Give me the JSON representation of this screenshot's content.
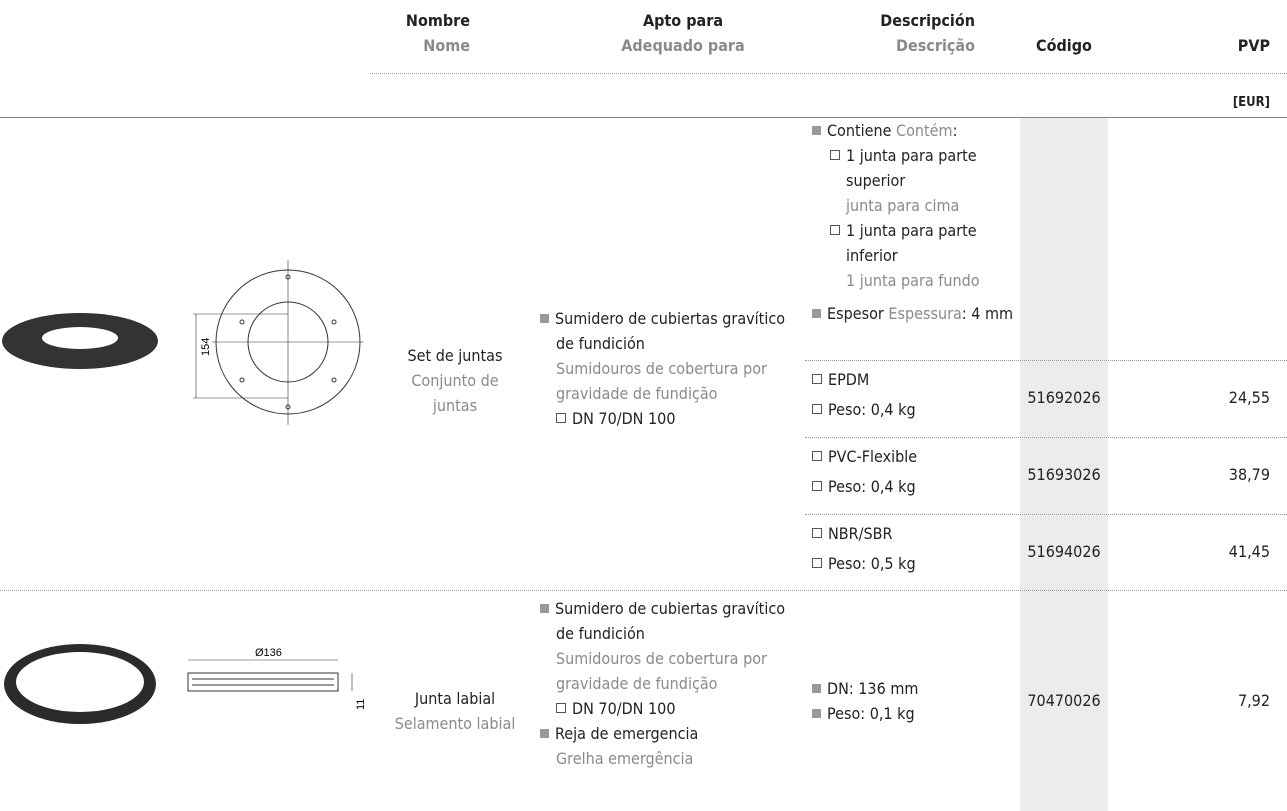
{
  "header": {
    "name_es": "Nombre",
    "name_pt": "Nome",
    "suitable_es": "Apto para",
    "suitable_pt": "Adequado para",
    "desc_es": "Descripción",
    "desc_pt": "Descrição",
    "code": "Código",
    "price": "PVP",
    "currency": "[EUR]"
  },
  "products": [
    {
      "drawing_labels": [
        "154"
      ],
      "name_es": "Set de juntas",
      "name_pt": "Conjunto de juntas",
      "suitable": [
        {
          "es": "Sumidero de cubiertas gravítico de fundición",
          "pt": "Sumidouros de cobertura por gravidade de fundição",
          "sub": "DN 70/DN 100"
        }
      ],
      "contents": {
        "es": "Contiene",
        "pt": "Contém",
        "suffix": ":"
      },
      "items": [
        {
          "es": "1 junta para parte superior",
          "pt": "junta para cima"
        },
        {
          "es": "1 junta para parte inferior",
          "pt": "1 junta para fundo"
        }
      ],
      "thickness": {
        "es": "Espesor",
        "pt": "Espessura",
        "value": ": 4 mm"
      },
      "variants": [
        {
          "material": "EPDM",
          "weight": "Peso: 0,4 kg",
          "code": "51692026",
          "price": "24,55"
        },
        {
          "material": "PVC-Flexible",
          "weight": "Peso: 0,4 kg",
          "code": "51693026",
          "price": "38,79"
        },
        {
          "material": "NBR/SBR",
          "weight": "Peso: 0,5 kg",
          "code": "51694026",
          "price": "41,45"
        }
      ]
    },
    {
      "drawing_labels": [
        "Ø136",
        "11"
      ],
      "name_es": "Junta labial",
      "name_pt": "Selamento labial",
      "suitable": [
        {
          "es": "Sumidero de cubiertas gravítico de fundición",
          "pt": "Sumidouros de cobertura por gravidade de fundição",
          "sub": "DN 70/DN 100"
        },
        {
          "es": "Reja de emergencia",
          "pt": "Grelha emergência"
        }
      ],
      "description": [
        "DN: 136 mm",
        "Peso: 0,1 kg"
      ],
      "code": "70470026",
      "price": "7,92"
    }
  ]
}
